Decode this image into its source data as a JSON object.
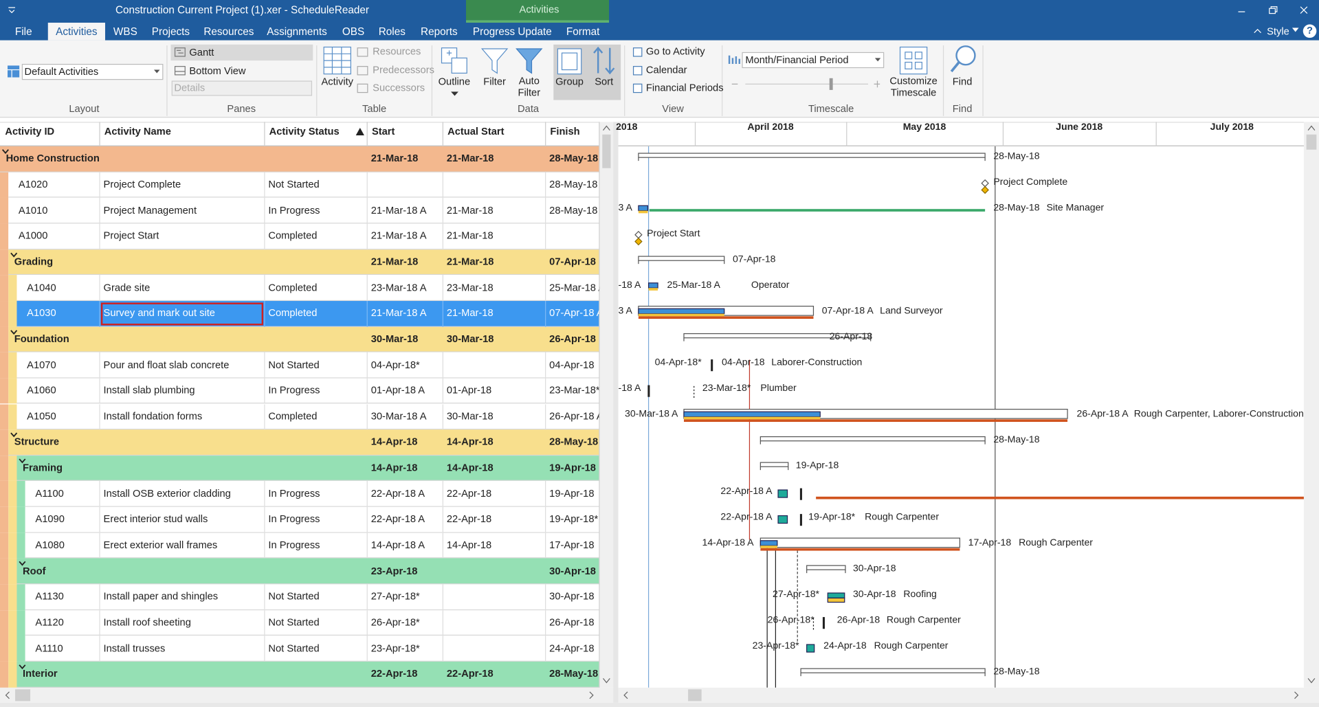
{
  "window": {
    "title": "Construction Current Project (1).xer - ScheduleReader",
    "context_tab": "Activities",
    "style_menu": "Style",
    "help": "?"
  },
  "menu_tabs": [
    "File",
    "Activities",
    "WBS",
    "Projects",
    "Resources",
    "Assignments",
    "OBS",
    "Roles",
    "Reports",
    "Progress Update",
    "Format"
  ],
  "active_tab": 1,
  "ribbon": {
    "layout": {
      "label": "Layout",
      "dropdown": "Default Activities"
    },
    "panes": {
      "label": "Panes",
      "items": [
        "Gantt",
        "Bottom View"
      ],
      "details": "Details"
    },
    "table": {
      "label": "Table",
      "activity": "Activity",
      "items": [
        "Resources",
        "Predecessors",
        "Successors"
      ]
    },
    "data": {
      "label": "Data",
      "buttons": [
        "Outline",
        "Filter",
        "Auto Filter",
        "Group",
        "Sort"
      ]
    },
    "view": {
      "label": "View",
      "items": [
        "Go to Activity",
        "Calendar",
        "Financial Periods"
      ]
    },
    "timescale": {
      "label": "Timescale",
      "dropdown": "Month/Financial Period",
      "customize": "Customize Timescale"
    },
    "find": {
      "label": "Find",
      "button": "Find"
    }
  },
  "table": {
    "columns": [
      "Activity ID",
      "Activity Name",
      "Activity Status",
      "Start",
      "Actual Start",
      "Finish"
    ],
    "rows": [
      {
        "kind": "wbs",
        "level": 0,
        "name": "Home Construction",
        "start": "21-Mar-18",
        "actual_start": "21-Mar-18",
        "finish": "28-May-18"
      },
      {
        "kind": "activity",
        "level": 0,
        "id": "A1020",
        "name": "Project Complete",
        "status": "Not Started",
        "finish": "28-May-18"
      },
      {
        "kind": "activity",
        "level": 0,
        "id": "A1010",
        "name": "Project Management",
        "status": "In Progress",
        "start": "21-Mar-18 A",
        "actual_start": "21-Mar-18",
        "finish": "28-May-18"
      },
      {
        "kind": "activity",
        "level": 0,
        "id": "A1000",
        "name": "Project Start",
        "status": "Completed",
        "start": "21-Mar-18 A",
        "actual_start": "21-Mar-18"
      },
      {
        "kind": "wbs",
        "level": 1,
        "name": "Grading",
        "start": "21-Mar-18",
        "actual_start": "21-Mar-18",
        "finish": "07-Apr-18"
      },
      {
        "kind": "activity",
        "level": 1,
        "id": "A1040",
        "name": "Grade site",
        "status": "Completed",
        "start": "23-Mar-18 A",
        "actual_start": "23-Mar-18",
        "finish": "25-Mar-18 A"
      },
      {
        "kind": "activity",
        "level": 1,
        "id": "A1030",
        "name": "Survey and mark out site",
        "status": "Completed",
        "start": "21-Mar-18 A",
        "actual_start": "21-Mar-18",
        "finish": "07-Apr-18 A",
        "selected": true
      },
      {
        "kind": "wbs",
        "level": 1,
        "name": "Foundation",
        "start": "30-Mar-18",
        "actual_start": "30-Mar-18",
        "finish": "26-Apr-18"
      },
      {
        "kind": "activity",
        "level": 1,
        "id": "A1070",
        "name": "Pour and float slab concrete",
        "status": "Not Started",
        "start": "04-Apr-18*",
        "finish": "04-Apr-18"
      },
      {
        "kind": "activity",
        "level": 1,
        "id": "A1060",
        "name": "Install slab plumbing",
        "status": "In Progress",
        "start": "01-Apr-18 A",
        "actual_start": "01-Apr-18",
        "finish": "23-Mar-18*"
      },
      {
        "kind": "activity",
        "level": 1,
        "id": "A1050",
        "name": "Install fondation forms",
        "status": "Completed",
        "start": "30-Mar-18 A",
        "actual_start": "30-Mar-18",
        "finish": "26-Apr-18 A"
      },
      {
        "kind": "wbs",
        "level": 1,
        "name": "Structure",
        "start": "14-Apr-18",
        "actual_start": "14-Apr-18",
        "finish": "28-May-18"
      },
      {
        "kind": "wbs",
        "level": 2,
        "name": "Framing",
        "start": "14-Apr-18",
        "actual_start": "14-Apr-18",
        "finish": "19-Apr-18"
      },
      {
        "kind": "activity",
        "level": 2,
        "id": "A1100",
        "name": "Install OSB exterior cladding",
        "status": "In Progress",
        "start": "22-Apr-18 A",
        "actual_start": "22-Apr-18",
        "finish": "19-Apr-18"
      },
      {
        "kind": "activity",
        "level": 2,
        "id": "A1090",
        "name": "Erect interior stud walls",
        "status": "In Progress",
        "start": "22-Apr-18 A",
        "actual_start": "22-Apr-18",
        "finish": "19-Apr-18*"
      },
      {
        "kind": "activity",
        "level": 2,
        "id": "A1080",
        "name": "Erect exterior wall frames",
        "status": "In Progress",
        "start": "14-Apr-18 A",
        "actual_start": "14-Apr-18",
        "finish": "17-Apr-18"
      },
      {
        "kind": "wbs",
        "level": 2,
        "name": "Roof",
        "start": "23-Apr-18",
        "finish": "30-Apr-18"
      },
      {
        "kind": "activity",
        "level": 2,
        "id": "A1130",
        "name": "Install paper and shingles",
        "status": "Not Started",
        "start": "27-Apr-18*",
        "finish": "30-Apr-18"
      },
      {
        "kind": "activity",
        "level": 2,
        "id": "A1120",
        "name": "Install roof sheeting",
        "status": "Not Started",
        "start": "26-Apr-18*",
        "finish": "26-Apr-18"
      },
      {
        "kind": "activity",
        "level": 2,
        "id": "A1110",
        "name": "Install trusses",
        "status": "Not Started",
        "start": "23-Apr-18*",
        "finish": "24-Apr-18"
      },
      {
        "kind": "wbs",
        "level": 2,
        "name": "Interior",
        "start": "22-Apr-18",
        "actual_start": "22-Apr-18",
        "finish": "28-May-18"
      }
    ]
  },
  "gantt": {
    "months": [
      "2018",
      "April 2018",
      "May 2018",
      "June 2018",
      "July 2018"
    ],
    "rows": [
      [
        "28-May-18"
      ],
      [
        "Project Complete"
      ],
      [
        "3 A",
        "28-May-18",
        "Site Manager"
      ],
      [
        "Project Start"
      ],
      [
        "07-Apr-18"
      ],
      [
        "-18 A",
        "25-Mar-18 A",
        "Operator"
      ],
      [
        "3 A",
        "07-Apr-18 A",
        "Land Surveyor"
      ],
      [
        "26-Apr-18"
      ],
      [
        "04-Apr-18*",
        "04-Apr-18",
        "Laborer-Construction"
      ],
      [
        "-18 A",
        "23-Mar-18*",
        "Plumber"
      ],
      [
        "30-Mar-18 A",
        "26-Apr-18 A",
        "Rough Carpenter, Laborer-Construction"
      ],
      [
        "28-May-18"
      ],
      [
        "19-Apr-18"
      ],
      [
        "22-Apr-18 A"
      ],
      [
        "22-Apr-18 A",
        "19-Apr-18*",
        "Rough Carpenter"
      ],
      [
        "14-Apr-18 A",
        "17-Apr-18",
        "Rough Carpenter"
      ],
      [
        "30-Apr-18"
      ],
      [
        "27-Apr-18*",
        "30-Apr-18",
        "Roofing"
      ],
      [
        "26-Apr-18*",
        "26-Apr-18",
        "Rough Carpenter"
      ],
      [
        "23-Apr-18*",
        "24-Apr-18",
        "Rough Carpenter"
      ],
      [
        "28-May-18"
      ]
    ]
  }
}
